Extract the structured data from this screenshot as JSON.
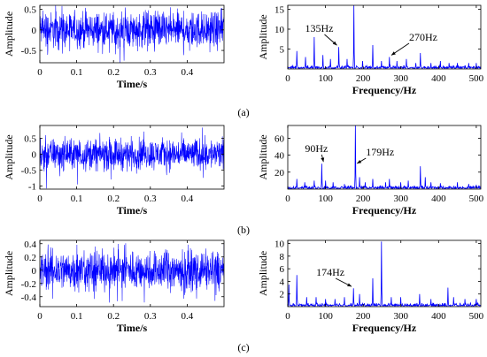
{
  "colors": {
    "signal": "#0000ff",
    "axes": "#000000",
    "background": "#ffffff"
  },
  "panel_labels": [
    "(a)",
    "(b)",
    "(c)"
  ],
  "chart_data": [
    {
      "panel": "(a)",
      "type": "line",
      "kind": "time",
      "xlabel": "Time/s",
      "ylabel": "Amplitude",
      "xlim": [
        0,
        0.5
      ],
      "ylim": [
        -0.8,
        0.6
      ],
      "xticks": [
        "0",
        "0.1",
        "0.2",
        "0.3",
        "0.4"
      ],
      "yticks": [
        "-0.5",
        "0",
        "0.5"
      ],
      "series": [
        {
          "type": "noise",
          "color": "#0000ff",
          "amplitude": 0.27,
          "spike_max": 0.6,
          "spike_min": -0.8
        }
      ]
    },
    {
      "panel": "(a)",
      "type": "line",
      "kind": "spectrum",
      "xlabel": "Frequency/Hz",
      "ylabel": "Amplitude",
      "xlim": [
        0,
        512
      ],
      "ylim": [
        0,
        16
      ],
      "xticks": [
        "0",
        "100",
        "200",
        "300",
        "400",
        "500"
      ],
      "yticks": [
        "5",
        "10",
        "15"
      ],
      "peaks": [
        [
          24,
          4.5
        ],
        [
          47,
          3.0
        ],
        [
          70,
          8.0
        ],
        [
          93,
          3.5
        ],
        [
          113,
          2.5
        ],
        [
          135,
          5.5
        ],
        [
          157,
          2.5
        ],
        [
          175,
          16.0
        ],
        [
          198,
          2.0
        ],
        [
          225,
          6.0
        ],
        [
          248,
          2.0
        ],
        [
          270,
          3.0
        ],
        [
          290,
          2.0
        ],
        [
          315,
          2.5
        ],
        [
          340,
          1.5
        ],
        [
          352,
          4.0
        ],
        [
          380,
          1.5
        ],
        [
          405,
          2.0
        ],
        [
          428,
          1.5
        ],
        [
          450,
          1.5
        ],
        [
          480,
          1.5
        ],
        [
          500,
          1.5
        ]
      ],
      "annotations": [
        {
          "text": "135Hz",
          "x": 135,
          "y": 5.5
        },
        {
          "text": "270Hz",
          "x": 270,
          "y": 3.0
        }
      ]
    },
    {
      "panel": "(b)",
      "type": "line",
      "kind": "time",
      "xlabel": "Time/s",
      "ylabel": "Amplitude",
      "xlim": [
        0,
        0.5
      ],
      "ylim": [
        -1.1,
        0.9
      ],
      "xticks": [
        "0",
        "0.1",
        "0.2",
        "0.3",
        "0.4"
      ],
      "yticks": [
        "-1",
        "-0.5",
        "0",
        "0.5"
      ],
      "series": [
        {
          "type": "noise",
          "color": "#0000ff",
          "amplitude": 0.3,
          "spike_max": 0.9,
          "spike_min": -1.1
        }
      ]
    },
    {
      "panel": "(b)",
      "type": "line",
      "kind": "spectrum",
      "xlabel": "Frequency/Hz",
      "ylabel": "Amplitude",
      "xlim": [
        0,
        512
      ],
      "ylim": [
        0,
        75
      ],
      "xticks": [
        "0",
        "100",
        "200",
        "300",
        "400",
        "500"
      ],
      "yticks": [
        "20",
        "40",
        "60"
      ],
      "peaks": [
        [
          24,
          12
        ],
        [
          45,
          8
        ],
        [
          70,
          10
        ],
        [
          90,
          30
        ],
        [
          100,
          10
        ],
        [
          120,
          8
        ],
        [
          150,
          6
        ],
        [
          179,
          75
        ],
        [
          190,
          14
        ],
        [
          205,
          8
        ],
        [
          225,
          12
        ],
        [
          260,
          8
        ],
        [
          270,
          12
        ],
        [
          300,
          8
        ],
        [
          320,
          10
        ],
        [
          352,
          27
        ],
        [
          365,
          14
        ],
        [
          380,
          8
        ],
        [
          405,
          7
        ],
        [
          450,
          8
        ],
        [
          480,
          6
        ],
        [
          500,
          5
        ]
      ],
      "annotations": [
        {
          "text": "90Hz",
          "x": 90,
          "y": 30
        },
        {
          "text": "179Hz",
          "x": 179,
          "y": 75
        }
      ]
    },
    {
      "panel": "(c)",
      "type": "line",
      "kind": "time",
      "xlabel": "Time/s",
      "ylabel": "Amplitude",
      "xlim": [
        0,
        0.5
      ],
      "ylim": [
        -0.55,
        0.45
      ],
      "xticks": [
        "0",
        "0.1",
        "0.2",
        "0.3",
        "0.4"
      ],
      "yticks": [
        "-0.4",
        "-0.2",
        "0",
        "0.2",
        "0.4"
      ],
      "series": [
        {
          "type": "noise",
          "color": "#0000ff",
          "amplitude": 0.18,
          "spike_max": 0.42,
          "spike_min": -0.5
        }
      ]
    },
    {
      "panel": "(c)",
      "type": "line",
      "kind": "spectrum",
      "xlabel": "Frequency/Hz",
      "ylabel": "Amplitude",
      "xlim": [
        0,
        512
      ],
      "ylim": [
        0,
        10.5
      ],
      "xticks": [
        "0",
        "100",
        "200",
        "300",
        "400",
        "500"
      ],
      "yticks": [
        "2",
        "4",
        "6",
        "8",
        "10"
      ],
      "peaks": [
        [
          3,
          3.5
        ],
        [
          24,
          5.0
        ],
        [
          50,
          1.5
        ],
        [
          75,
          1.5
        ],
        [
          100,
          1.2
        ],
        [
          125,
          1.2
        ],
        [
          150,
          1.5
        ],
        [
          174,
          2.9
        ],
        [
          190,
          2.0
        ],
        [
          225,
          4.5
        ],
        [
          248,
          10.3
        ],
        [
          275,
          1.5
        ],
        [
          300,
          1.5
        ],
        [
          350,
          2.0
        ],
        [
          380,
          1.2
        ],
        [
          425,
          3.0
        ],
        [
          440,
          1.5
        ],
        [
          470,
          1.2
        ],
        [
          500,
          1.2
        ]
      ],
      "annotations": [
        {
          "text": "174Hz",
          "x": 174,
          "y": 2.9
        }
      ]
    }
  ]
}
